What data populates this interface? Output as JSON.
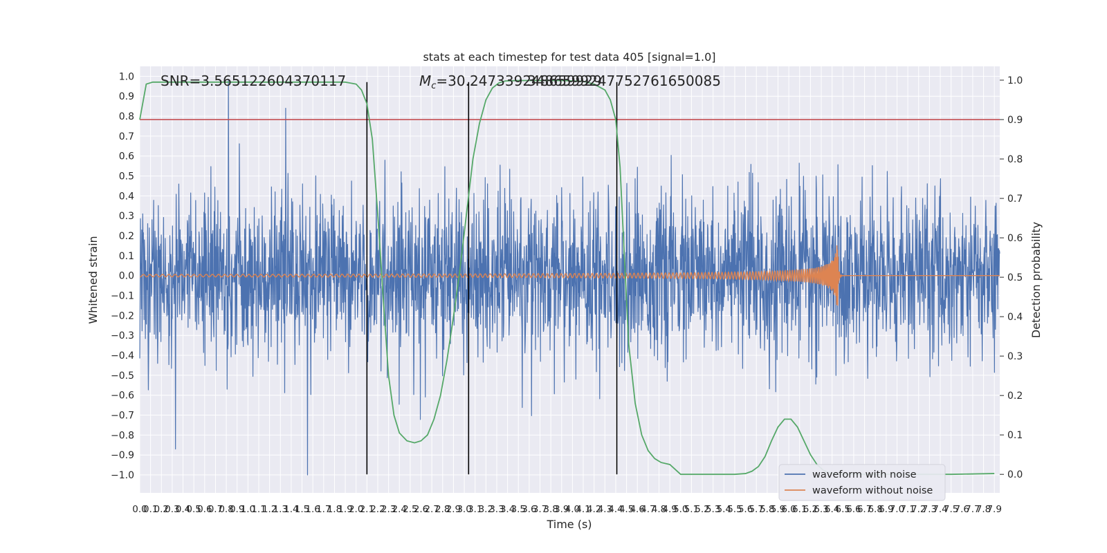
{
  "chart_data": {
    "type": "line",
    "title": "stats at each timestep for test data 405 [signal=1.0]",
    "xlabel": "Time (s)",
    "ylabel_left": "Whitened strain",
    "ylabel_right": "Detection probability",
    "annotations": {
      "snr": "SNR=3.565122604370117",
      "mc_prefix": "M",
      "mc_sub": "c",
      "mc_value": "=30.247339248659929",
      "mc_overlap": "3486599247752761650085"
    },
    "xlim": [
      0.0,
      7.95
    ],
    "ylim_left": [
      -1.09,
      1.05
    ],
    "ylim_right": [
      -0.047,
      1.035
    ],
    "grid": true,
    "legend_position": "lower-right",
    "x_ticks": [
      "0.0",
      "0.1",
      "0.2",
      "0.3",
      "0.4",
      "0.5",
      "0.6",
      "0.7",
      "0.8",
      "0.9",
      "1.0",
      "1.1",
      "1.2",
      "1.3",
      "1.4",
      "1.5",
      "1.6",
      "1.7",
      "1.8",
      "1.9",
      "2.0",
      "2.1",
      "2.2",
      "2.3",
      "2.4",
      "2.5",
      "2.6",
      "2.7",
      "2.8",
      "2.9",
      "3.0",
      "3.1",
      "3.2",
      "3.3",
      "3.4",
      "3.5",
      "3.6",
      "3.7",
      "3.8",
      "3.9",
      "4.0",
      "4.1",
      "4.2",
      "4.3",
      "4.4",
      "4.5",
      "4.6",
      "4.7",
      "4.8",
      "4.9",
      "5.0",
      "5.1",
      "5.2",
      "5.3",
      "5.4",
      "5.5",
      "5.6",
      "5.7",
      "5.8",
      "5.9",
      "6.0",
      "6.1",
      "6.2",
      "6.3",
      "6.4",
      "6.5",
      "6.6",
      "6.7",
      "6.8",
      "6.9",
      "7.0",
      "7.1",
      "7.2",
      "7.3",
      "7.4",
      "7.5",
      "7.6",
      "7.7",
      "7.8",
      "7.9"
    ],
    "y_ticks_left": [
      "1.0",
      "0.9",
      "0.8",
      "0.7",
      "0.6",
      "0.5",
      "0.4",
      "0.3",
      "0.2",
      "0.1",
      "0.0",
      "-0.1",
      "-0.2",
      "-0.3",
      "-0.4",
      "-0.5",
      "-0.6",
      "-0.7",
      "-0.8",
      "-0.9",
      "-1.0"
    ],
    "y_ticks_right": [
      "1.0",
      "0.9",
      "0.8",
      "0.7",
      "0.6",
      "0.5",
      "0.4",
      "0.3",
      "0.2",
      "0.1",
      "0.0"
    ],
    "threshold": {
      "value": 0.9,
      "axis": "right",
      "color": "#c44e52"
    },
    "vertical_lines": [
      2.1,
      3.04,
      4.41
    ],
    "series": [
      {
        "name": "waveform with noise",
        "axis": "left",
        "color": "#4c72b0",
        "style": "dense noise, approx. gaussian, std 0.2, peaks near +/-1.0",
        "notable_extremes": [
          {
            "x": 0.82,
            "y": 0.98
          },
          {
            "x": 1.35,
            "y": 0.84
          },
          {
            "x": 1.55,
            "y": -1.0
          },
          {
            "x": 0.33,
            "y": -0.87
          }
        ]
      },
      {
        "name": "waveform without noise",
        "axis": "left",
        "color": "#dd8452",
        "style": "chirp, amplitude growing until merger at approx. 6.45 s",
        "merger_time": 6.45,
        "peak_amplitude": 0.2
      },
      {
        "name": "detection probability",
        "axis": "right",
        "color": "#55a868",
        "x": [
          0.0,
          0.06,
          0.12,
          0.5,
          1.0,
          1.5,
          1.9,
          2.0,
          2.05,
          2.1,
          2.15,
          2.2,
          2.25,
          2.3,
          2.35,
          2.4,
          2.47,
          2.54,
          2.6,
          2.66,
          2.72,
          2.78,
          2.84,
          2.9,
          2.96,
          3.02,
          3.08,
          3.14,
          3.2,
          3.26,
          3.32,
          3.38,
          3.5,
          3.7,
          3.9,
          4.1,
          4.2,
          4.3,
          4.35,
          4.4,
          4.44,
          4.48,
          4.52,
          4.58,
          4.64,
          4.7,
          4.76,
          4.82,
          4.9,
          5.0,
          5.3,
          5.5,
          5.6,
          5.66,
          5.72,
          5.78,
          5.84,
          5.9,
          5.96,
          6.02,
          6.08,
          6.14,
          6.2,
          6.26,
          6.32,
          6.4,
          6.6,
          6.8,
          7.0,
          7.5,
          7.9
        ],
        "y": [
          0.9,
          0.99,
          0.995,
          0.995,
          0.995,
          0.995,
          0.995,
          0.99,
          0.975,
          0.94,
          0.85,
          0.66,
          0.45,
          0.25,
          0.15,
          0.105,
          0.085,
          0.08,
          0.085,
          0.1,
          0.14,
          0.2,
          0.29,
          0.4,
          0.52,
          0.66,
          0.8,
          0.89,
          0.95,
          0.98,
          0.993,
          0.998,
          0.999,
          0.999,
          0.999,
          0.997,
          0.99,
          0.975,
          0.95,
          0.9,
          0.78,
          0.55,
          0.33,
          0.18,
          0.1,
          0.06,
          0.04,
          0.03,
          0.025,
          0.0,
          0.0,
          0.0,
          0.002,
          0.008,
          0.02,
          0.045,
          0.085,
          0.12,
          0.14,
          0.14,
          0.12,
          0.085,
          0.05,
          0.025,
          0.01,
          0.002,
          0.0,
          0.0,
          0.0,
          0.0,
          0.002
        ]
      }
    ]
  }
}
